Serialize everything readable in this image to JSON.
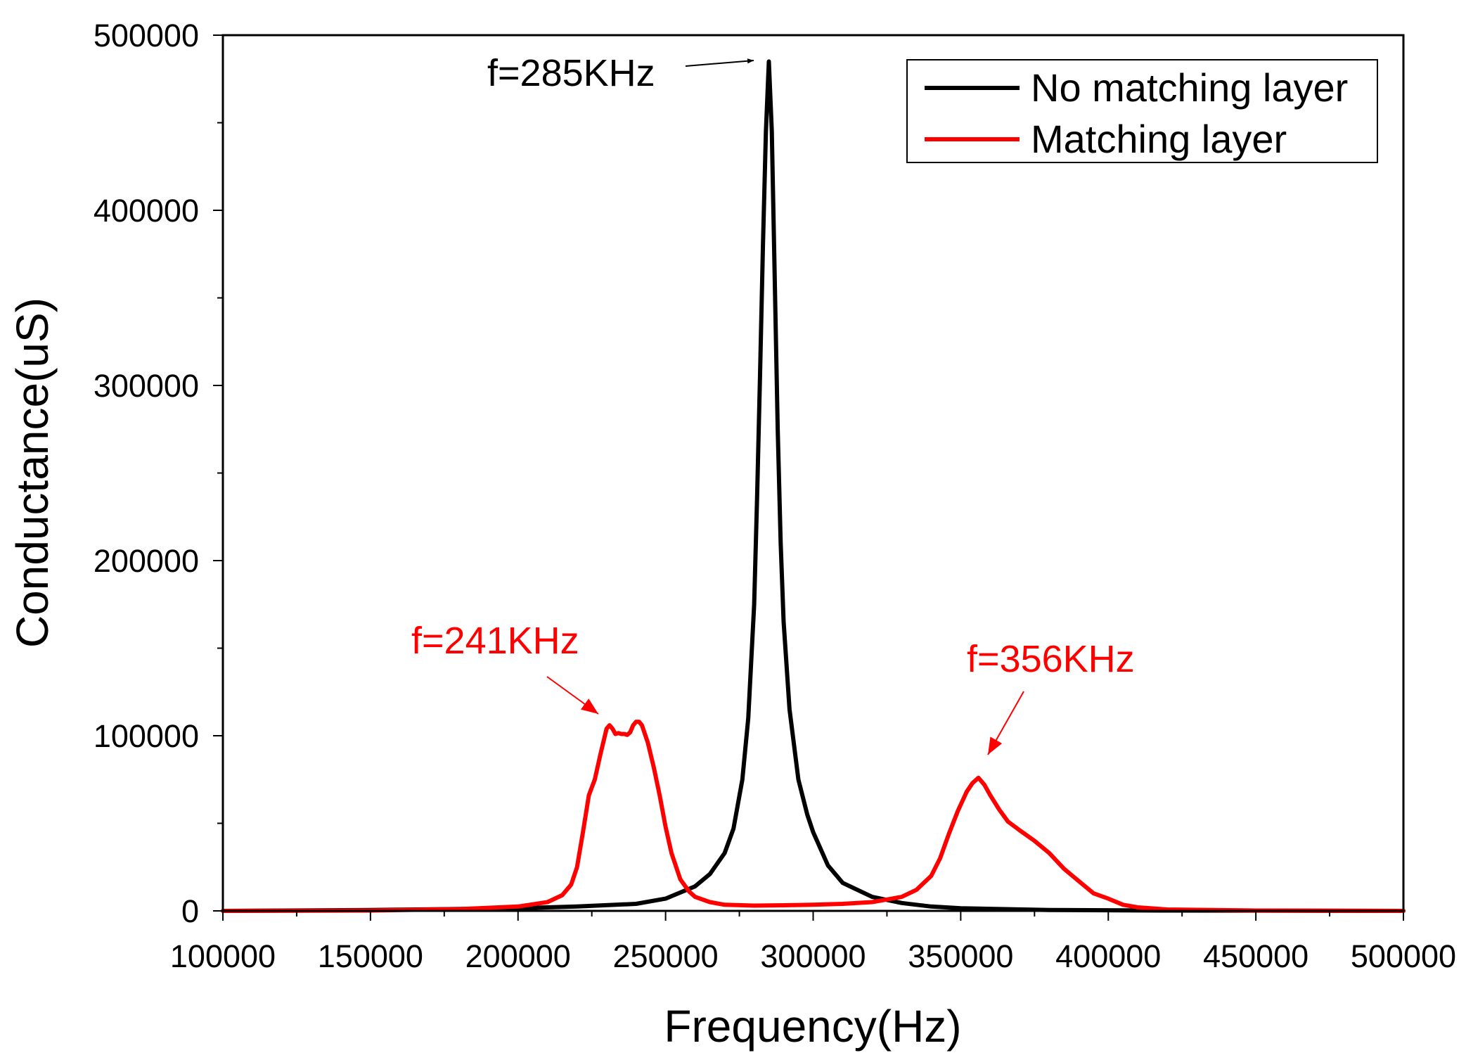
{
  "chart_data": {
    "type": "line",
    "title": "",
    "xlabel": "Frequency(Hz)",
    "ylabel": "Conductance(uS)",
    "xlim": [
      100000,
      500000
    ],
    "ylim": [
      0,
      500000
    ],
    "xticks": [
      100000,
      150000,
      200000,
      250000,
      300000,
      350000,
      400000,
      450000,
      500000
    ],
    "yticks": [
      0,
      100000,
      200000,
      300000,
      400000,
      500000
    ],
    "xtick_labels": [
      "100000",
      "150000",
      "200000",
      "250000",
      "300000",
      "350000",
      "400000",
      "450000",
      "500000"
    ],
    "ytick_labels": [
      "0",
      "100000",
      "200000",
      "300000",
      "400000",
      "500000"
    ],
    "grid": false,
    "legend_position": "top-right",
    "series": [
      {
        "name": "No matching layer",
        "color": "#000000",
        "x": [
          100000,
          150000,
          200000,
          220000,
          240000,
          250000,
          260000,
          265000,
          270000,
          273000,
          276000,
          278000,
          280000,
          281000,
          282000,
          283000,
          284000,
          285000,
          286000,
          287000,
          288000,
          289000,
          290000,
          292000,
          295000,
          298000,
          300000,
          305000,
          310000,
          320000,
          330000,
          340000,
          350000,
          380000,
          420000,
          500000
        ],
        "y": [
          0,
          500,
          1500,
          2500,
          4000,
          7000,
          14000,
          21000,
          33000,
          47000,
          75000,
          110000,
          175000,
          235000,
          305000,
          380000,
          445000,
          485000,
          445000,
          360000,
          275000,
          210000,
          165000,
          115000,
          75000,
          55000,
          45000,
          26000,
          16000,
          8000,
          4500,
          2500,
          1500,
          500,
          200,
          0
        ]
      },
      {
        "name": "Matching layer",
        "color": "#ff0000",
        "x": [
          100000,
          150000,
          180000,
          200000,
          210000,
          215000,
          218000,
          220000,
          222000,
          224000,
          226000,
          228000,
          230000,
          231000,
          232000,
          233000,
          234000,
          235000,
          236000,
          237000,
          238000,
          239000,
          240000,
          241000,
          242000,
          244000,
          246000,
          248000,
          250000,
          252000,
          255000,
          258000,
          260000,
          265000,
          270000,
          280000,
          290000,
          300000,
          310000,
          320000,
          330000,
          335000,
          340000,
          343000,
          346000,
          349000,
          352000,
          354000,
          356000,
          358000,
          360000,
          363000,
          366000,
          370000,
          375000,
          380000,
          385000,
          390000,
          395000,
          400000,
          405000,
          410000,
          420000,
          450000,
          500000
        ],
        "y": [
          0,
          200,
          1000,
          2500,
          5000,
          9000,
          15000,
          25000,
          45000,
          66000,
          75000,
          90000,
          104000,
          106000,
          104000,
          101000,
          101500,
          101000,
          101000,
          100500,
          102000,
          106000,
          108000,
          108000,
          106000,
          96000,
          82000,
          66000,
          48000,
          33000,
          18000,
          11000,
          8000,
          5000,
          3500,
          3000,
          3200,
          3500,
          4000,
          5000,
          8000,
          12000,
          20000,
          30000,
          44000,
          57000,
          68000,
          73000,
          76000,
          72000,
          66000,
          58000,
          51000,
          46000,
          40000,
          33000,
          24000,
          17000,
          10000,
          7000,
          3500,
          2000,
          800,
          200,
          0
        ]
      }
    ],
    "annotations": [
      {
        "text": "f=285KHz",
        "color": "#000000",
        "target_x": 285000,
        "target_y": 485000
      },
      {
        "text": "f=241KHz",
        "color": "#ff0000",
        "target_x": 232000,
        "target_y": 107000
      },
      {
        "text": "f=356KHz",
        "color": "#ff0000",
        "target_x": 355000,
        "target_y": 80000
      }
    ]
  }
}
